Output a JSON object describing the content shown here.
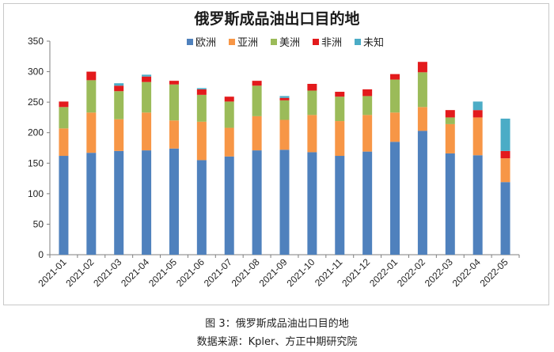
{
  "chart_data": {
    "type": "bar",
    "stacked": true,
    "title": "俄罗斯成品油出口目的地",
    "xlabel": "",
    "ylabel": "",
    "ylim": [
      0,
      350
    ],
    "yticks": [
      0,
      50,
      100,
      150,
      200,
      250,
      300,
      350
    ],
    "grid": false,
    "legend_position": "top-center",
    "categories": [
      "2021-01",
      "2021-02",
      "2021-03",
      "2021-04",
      "2021-05",
      "2021-06",
      "2021-07",
      "2021-08",
      "2021-09",
      "2021-10",
      "2021-11",
      "2021-12",
      "2022-01",
      "2022-02",
      "2022-03",
      "2022-04",
      "2022-05"
    ],
    "series": [
      {
        "name": "欧洲",
        "color": "#4f81bd",
        "values": [
          162,
          167,
          170,
          171,
          174,
          155,
          161,
          171,
          172,
          168,
          162,
          169,
          185,
          203,
          166,
          163,
          119
        ]
      },
      {
        "name": "亚洲",
        "color": "#f79646",
        "values": [
          45,
          66,
          52,
          62,
          46,
          63,
          47,
          56,
          49,
          61,
          57,
          60,
          48,
          39,
          48,
          62,
          39
        ]
      },
      {
        "name": "美洲",
        "color": "#9bbb59",
        "values": [
          35,
          53,
          46,
          50,
          59,
          44,
          43,
          50,
          32,
          40,
          40,
          31,
          54,
          57,
          11,
          0,
          0
        ]
      },
      {
        "name": "非洲",
        "color": "#e31a1c",
        "values": [
          9,
          14,
          9,
          9,
          6,
          9,
          8,
          8,
          4,
          11,
          8,
          11,
          9,
          17,
          12,
          12,
          12
        ]
      },
      {
        "name": "未知",
        "color": "#4bacc6",
        "values": [
          0,
          0,
          4,
          3,
          0,
          2,
          0,
          0,
          3,
          0,
          0,
          0,
          0,
          0,
          0,
          14,
          53
        ]
      }
    ]
  },
  "captions": {
    "figure": "图 3：俄罗斯成品油出口目的地",
    "source": "数据来源：Kpler、方正中期研究院"
  }
}
